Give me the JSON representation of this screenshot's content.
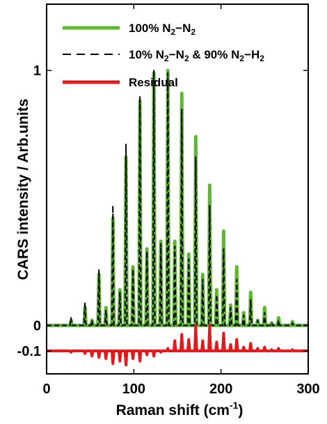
{
  "chart_data": {
    "type": "line",
    "xlabel": "Raman shift (cm",
    "xlabel_sup": "-1",
    "xlabel_close": ")",
    "ylabel": "CARS intensity / Arb.units",
    "xlim": [
      0,
      300
    ],
    "ylim": [
      -0.19,
      1.26
    ],
    "x_ticks": [
      {
        "value": 0,
        "label": "0"
      },
      {
        "value": 100,
        "label": "100"
      },
      {
        "value": 200,
        "label": "200"
      },
      {
        "value": 300,
        "label": "300"
      }
    ],
    "y_ticks": [
      {
        "value": 1,
        "label": "1"
      },
      {
        "value": 0,
        "label": "0"
      },
      {
        "value": -0.1,
        "label": "-0.1"
      }
    ],
    "grid": false,
    "legend_position": "top-left",
    "legend": [
      {
        "parts": [
          [
            "100% N",
            "n"
          ],
          [
            "2",
            "s"
          ],
          [
            "−N",
            "n"
          ],
          [
            "2",
            "s"
          ]
        ],
        "color": "#5cb82e",
        "style": "solid"
      },
      {
        "parts": [
          [
            "10% N",
            "n"
          ],
          [
            "2",
            "s"
          ],
          [
            "−N",
            "n"
          ],
          [
            "2",
            "s"
          ],
          [
            " & 90% N",
            "n"
          ],
          [
            "2",
            "s"
          ],
          [
            "−H",
            "n"
          ],
          [
            "2",
            "s"
          ]
        ],
        "color": "#000000",
        "style": "dashed"
      },
      {
        "parts": [
          [
            "Residual",
            "n"
          ]
        ],
        "color": "#e31a1c",
        "style": "solid"
      }
    ],
    "series": [
      {
        "name": "100% N2−N2",
        "color": "#5cb82e",
        "baseline": 0,
        "peaks": [
          {
            "x": 28,
            "y": 0.02
          },
          {
            "x": 44,
            "y": 0.07
          },
          {
            "x": 60,
            "y": 0.2
          },
          {
            "x": 76,
            "y": 0.42
          },
          {
            "x": 91,
            "y": 0.66
          },
          {
            "x": 107,
            "y": 0.88
          },
          {
            "x": 123,
            "y": 0.99
          },
          {
            "x": 139,
            "y": 1.0
          },
          {
            "x": 155,
            "y": 0.91
          },
          {
            "x": 171,
            "y": 0.74
          },
          {
            "x": 187,
            "y": 0.55
          },
          {
            "x": 203,
            "y": 0.37
          },
          {
            "x": 218,
            "y": 0.23
          },
          {
            "x": 234,
            "y": 0.13
          },
          {
            "x": 250,
            "y": 0.07
          },
          {
            "x": 266,
            "y": 0.03
          },
          {
            "x": 282,
            "y": 0.015
          }
        ],
        "minor_peaks": [
          {
            "x": 52,
            "y": 0.02
          },
          {
            "x": 68,
            "y": 0.07
          },
          {
            "x": 84,
            "y": 0.14
          },
          {
            "x": 99,
            "y": 0.23
          },
          {
            "x": 115,
            "y": 0.3
          },
          {
            "x": 131,
            "y": 0.33
          },
          {
            "x": 147,
            "y": 0.33
          },
          {
            "x": 163,
            "y": 0.28
          },
          {
            "x": 179,
            "y": 0.2
          },
          {
            "x": 195,
            "y": 0.14
          },
          {
            "x": 211,
            "y": 0.08
          },
          {
            "x": 226,
            "y": 0.05
          },
          {
            "x": 242,
            "y": 0.02
          },
          {
            "x": 258,
            "y": 0.01
          }
        ]
      },
      {
        "name": "10% N2−N2 & 90% N2−H2",
        "color": "#000000",
        "baseline": 0,
        "peaks": [
          {
            "x": 28,
            "y": 0.03
          },
          {
            "x": 44,
            "y": 0.09
          },
          {
            "x": 60,
            "y": 0.22
          },
          {
            "x": 76,
            "y": 0.47
          },
          {
            "x": 91,
            "y": 0.71
          },
          {
            "x": 107,
            "y": 0.9
          },
          {
            "x": 123,
            "y": 1.0
          },
          {
            "x": 139,
            "y": 0.99
          },
          {
            "x": 155,
            "y": 0.85
          },
          {
            "x": 171,
            "y": 0.66
          },
          {
            "x": 187,
            "y": 0.47
          },
          {
            "x": 203,
            "y": 0.3
          },
          {
            "x": 218,
            "y": 0.18
          },
          {
            "x": 234,
            "y": 0.1
          },
          {
            "x": 250,
            "y": 0.05
          },
          {
            "x": 266,
            "y": 0.02
          },
          {
            "x": 282,
            "y": 0.01
          }
        ],
        "minor_peaks": [
          {
            "x": 52,
            "y": 0.02
          },
          {
            "x": 68,
            "y": 0.06
          },
          {
            "x": 84,
            "y": 0.13
          },
          {
            "x": 99,
            "y": 0.22
          },
          {
            "x": 115,
            "y": 0.29
          },
          {
            "x": 131,
            "y": 0.32
          },
          {
            "x": 147,
            "y": 0.31
          },
          {
            "x": 163,
            "y": 0.26
          },
          {
            "x": 179,
            "y": 0.18
          },
          {
            "x": 195,
            "y": 0.12
          },
          {
            "x": 211,
            "y": 0.07
          },
          {
            "x": 226,
            "y": 0.04
          },
          {
            "x": 242,
            "y": 0.02
          },
          {
            "x": 258,
            "y": 0.01
          }
        ]
      },
      {
        "name": "Residual",
        "color": "#e31a1c",
        "baseline": -0.1,
        "peaks": [
          {
            "x": 28,
            "y": -0.105
          },
          {
            "x": 44,
            "y": -0.11
          },
          {
            "x": 60,
            "y": -0.125
          },
          {
            "x": 76,
            "y": -0.15
          },
          {
            "x": 91,
            "y": -0.155
          },
          {
            "x": 107,
            "y": -0.14
          },
          {
            "x": 123,
            "y": -0.12
          },
          {
            "x": 139,
            "y": -0.09
          },
          {
            "x": 155,
            "y": -0.035
          },
          {
            "x": 171,
            "y": 0.0
          },
          {
            "x": 187,
            "y": 0.0
          },
          {
            "x": 203,
            "y": -0.03
          },
          {
            "x": 218,
            "y": -0.055
          },
          {
            "x": 234,
            "y": -0.07
          },
          {
            "x": 250,
            "y": -0.085
          },
          {
            "x": 266,
            "y": -0.09
          },
          {
            "x": 282,
            "y": -0.095
          }
        ],
        "minor_peaks": [
          {
            "x": 52,
            "y": -0.12
          },
          {
            "x": 68,
            "y": -0.13
          },
          {
            "x": 84,
            "y": -0.14
          },
          {
            "x": 99,
            "y": -0.13
          },
          {
            "x": 115,
            "y": -0.115
          },
          {
            "x": 131,
            "y": -0.105
          },
          {
            "x": 147,
            "y": -0.06
          },
          {
            "x": 163,
            "y": -0.055
          },
          {
            "x": 179,
            "y": -0.06
          },
          {
            "x": 195,
            "y": -0.065
          },
          {
            "x": 211,
            "y": -0.075
          },
          {
            "x": 226,
            "y": -0.085
          },
          {
            "x": 242,
            "y": -0.09
          },
          {
            "x": 258,
            "y": -0.095
          }
        ]
      }
    ]
  }
}
